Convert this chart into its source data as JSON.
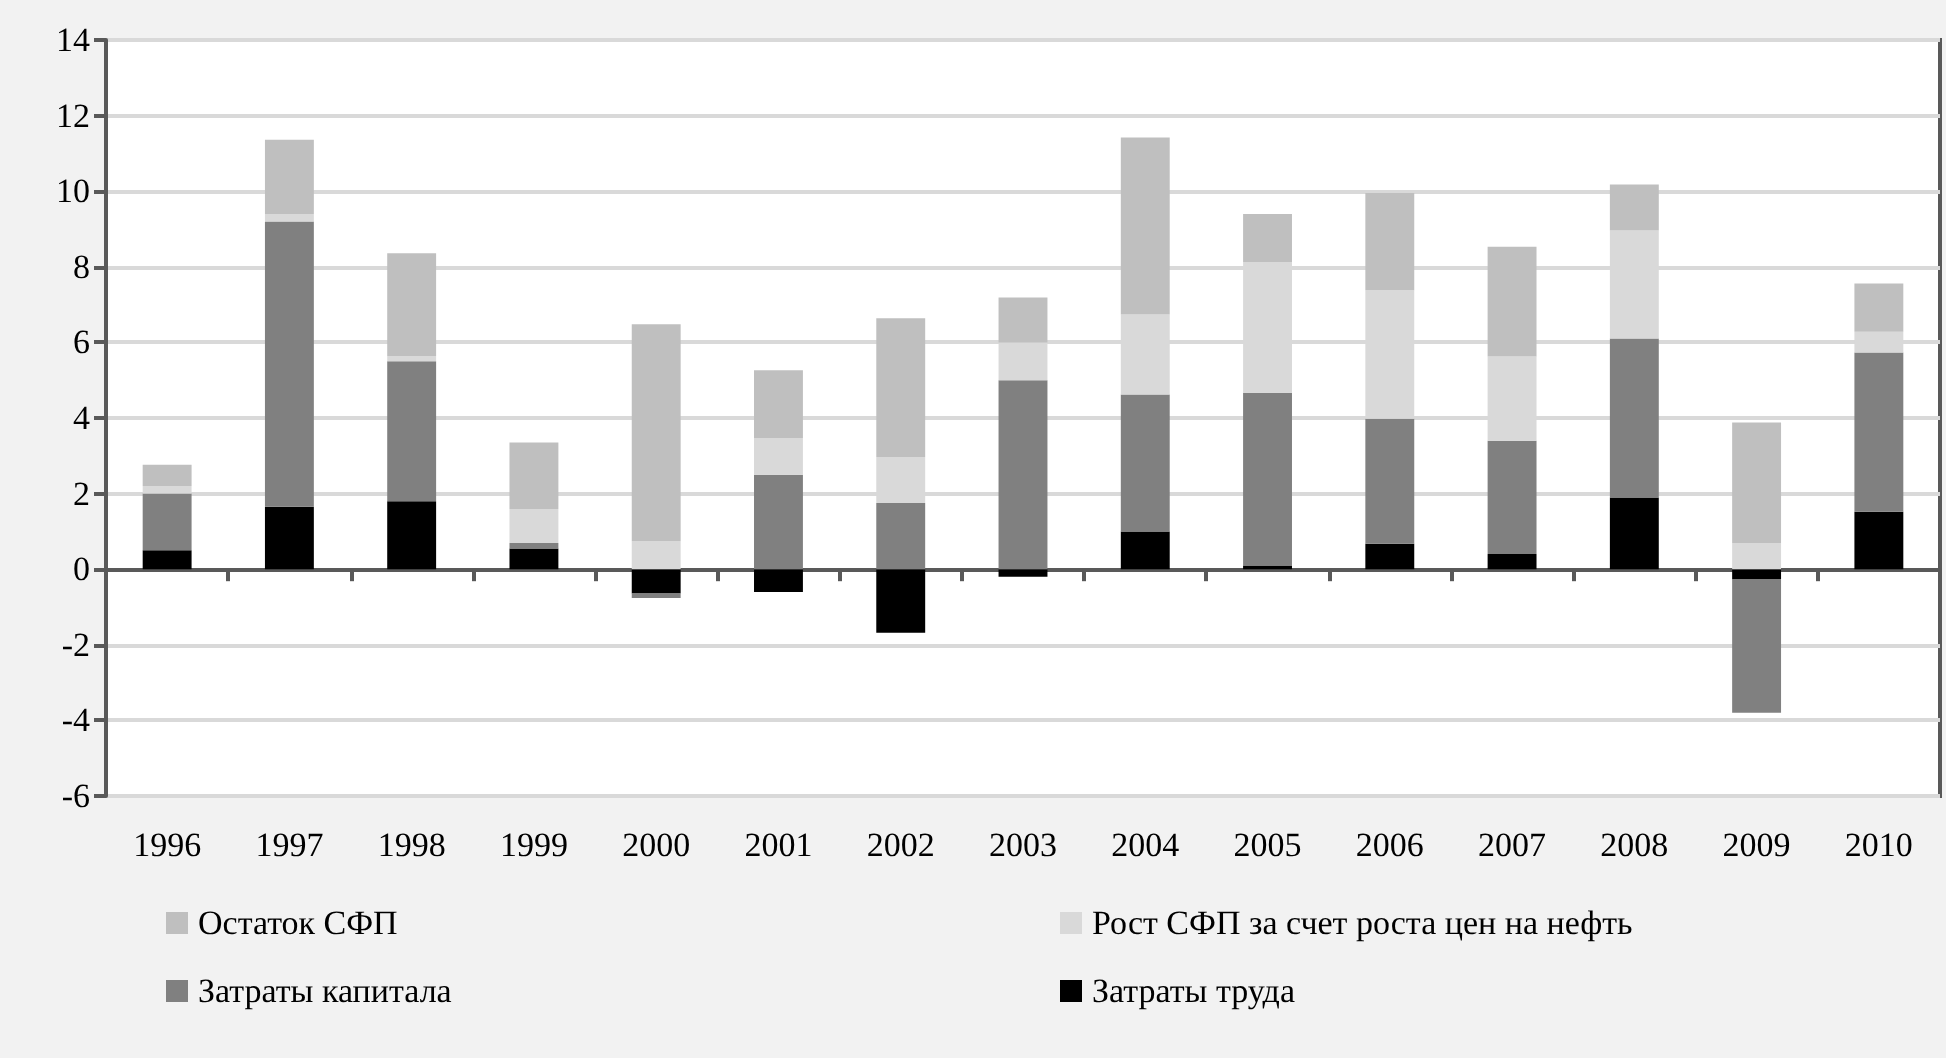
{
  "chart_data": {
    "type": "bar",
    "stacked": true,
    "categories": [
      "1996",
      "1997",
      "1998",
      "1999",
      "2000",
      "2001",
      "2002",
      "2003",
      "2004",
      "2005",
      "2006",
      "2007",
      "2008",
      "2009",
      "2010"
    ],
    "series": [
      {
        "name": "Затраты труда",
        "color": "#000000",
        "values": [
          0.5,
          1.65,
          1.8,
          0.55,
          -0.64,
          -0.6,
          -1.68,
          -0.2,
          1.0,
          0.1,
          0.67,
          0.4,
          1.9,
          -0.27,
          1.52
        ]
      },
      {
        "name": "Затраты капитала",
        "color": "#808080",
        "values": [
          1.5,
          7.55,
          3.7,
          0.14,
          -0.12,
          2.5,
          1.75,
          5.0,
          3.62,
          4.57,
          3.31,
          3.0,
          4.2,
          -3.53,
          4.21
        ]
      },
      {
        "name": "Рост СФП за счет роста цен на нефть",
        "color": "#d9d9d9",
        "values": [
          0.2,
          0.2,
          0.14,
          0.9,
          0.74,
          0.97,
          1.22,
          1.0,
          2.12,
          3.45,
          3.4,
          2.23,
          2.86,
          0.69,
          0.55
        ]
      },
      {
        "name": "Остаток СФП",
        "color": "#bfbfbf",
        "values": [
          0.56,
          1.96,
          2.72,
          1.76,
          5.74,
          1.79,
          3.67,
          1.19,
          4.68,
          1.28,
          2.57,
          2.9,
          1.22,
          3.19,
          1.28
        ]
      }
    ],
    "ylim": [
      -6,
      14
    ],
    "yticks": [
      -6,
      -4,
      -2,
      0,
      2,
      4,
      6,
      8,
      10,
      12,
      14
    ],
    "grid": "y",
    "legend": "bottom"
  }
}
